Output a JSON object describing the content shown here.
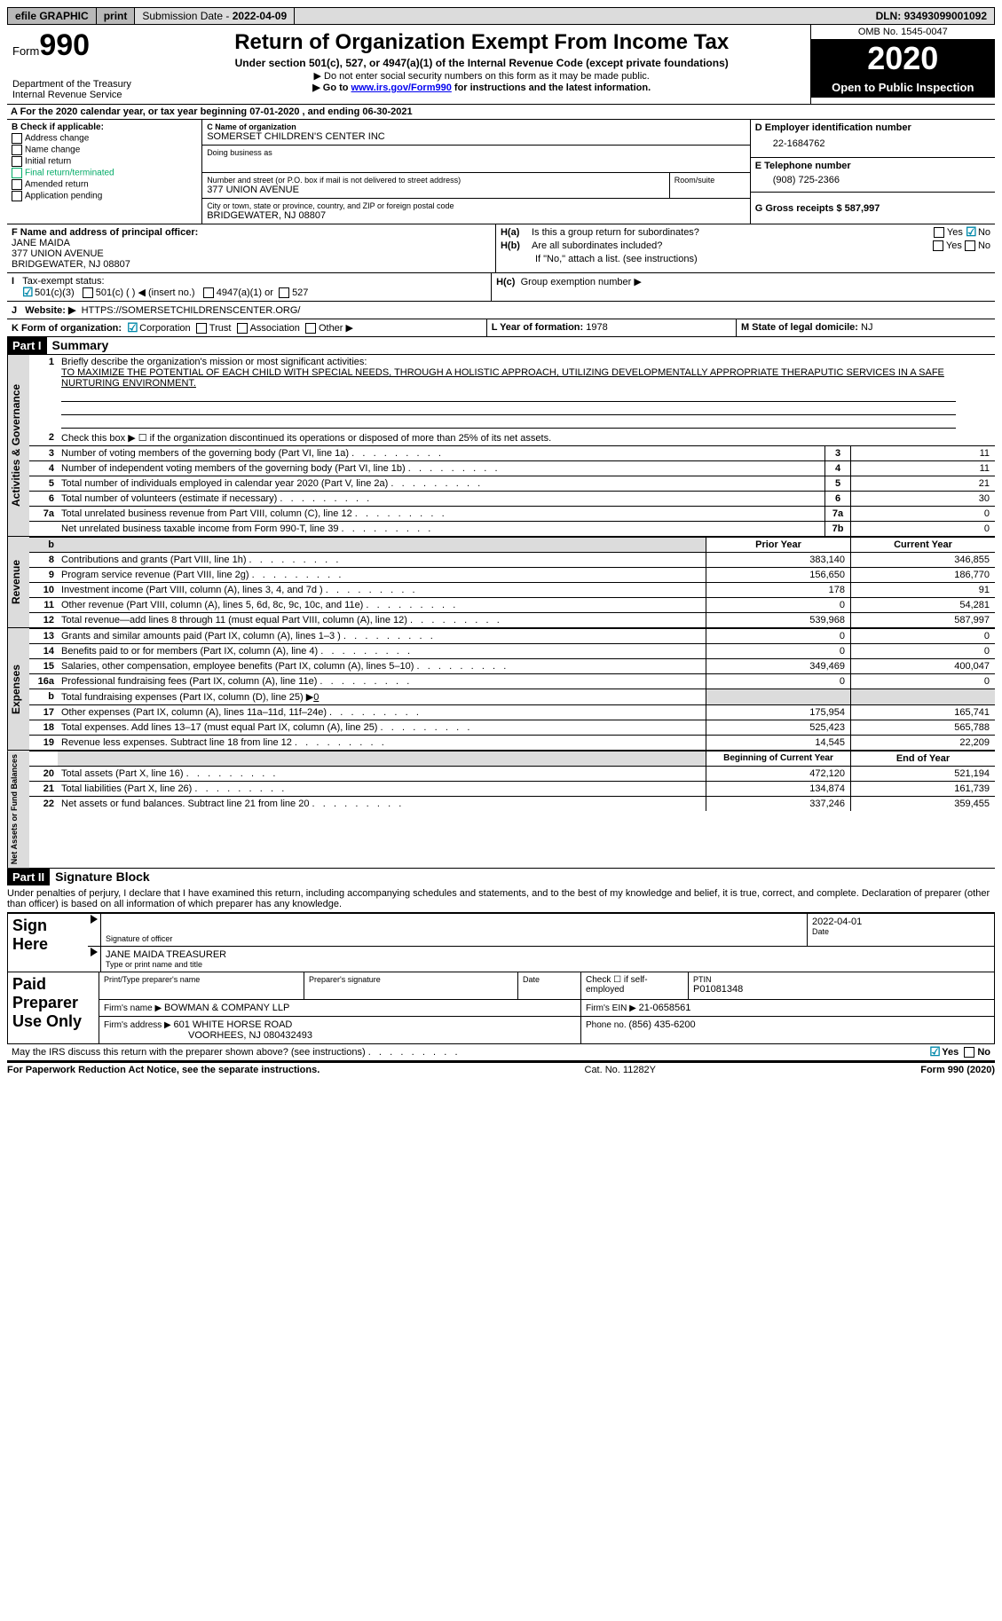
{
  "topbar": {
    "efile": "efile GRAPHIC",
    "print": "print",
    "subdate_label": "Submission Date - ",
    "subdate": "2022-04-09",
    "dln_label": "DLN: ",
    "dln": "93493099001092"
  },
  "header": {
    "form_prefix": "Form",
    "form_no": "990",
    "dept": "Department of the Treasury\nInternal Revenue Service",
    "title": "Return of Organization Exempt From Income Tax",
    "sub1": "Under section 501(c), 527, or 4947(a)(1) of the Internal Revenue Code (except private foundations)",
    "sub2": "▶ Do not enter social security numbers on this form as it may be made public.",
    "sub3_pre": "▶ Go to ",
    "sub3_link": "www.irs.gov/Form990",
    "sub3_post": " for instructions and the latest information.",
    "omb": "OMB No. 1545-0047",
    "year": "2020",
    "open": "Open to Public Inspection"
  },
  "lineA": "A For the 2020 calendar year, or tax year beginning 07-01-2020    , and ending 06-30-2021",
  "B": {
    "label": "B Check if applicable:",
    "items": [
      "Address change",
      "Name change",
      "Initial return",
      "Final return/terminated",
      "Amended return",
      "Application pending"
    ]
  },
  "C": {
    "name_label": "C Name of organization",
    "name": "SOMERSET CHILDREN'S CENTER INC",
    "dba_label": "Doing business as",
    "street_label": "Number and street (or P.O. box if mail is not delivered to street address)",
    "room_label": "Room/suite",
    "street": "377 UNION AVENUE",
    "city_label": "City or town, state or province, country, and ZIP or foreign postal code",
    "city": "BRIDGEWATER, NJ  08807"
  },
  "D": {
    "label": "D Employer identification number",
    "val": "22-1684762"
  },
  "E": {
    "label": "E Telephone number",
    "val": "(908) 725-2366"
  },
  "G": {
    "label": "G Gross receipts $ ",
    "val": "587,997"
  },
  "F": {
    "label": "F  Name and address of principal officer:",
    "name": "JANE MAIDA",
    "street": "377 UNION AVENUE",
    "city": "BRIDGEWATER, NJ  08807"
  },
  "H": {
    "a": "Is this a group return for subordinates?",
    "b": "Are all subordinates included?",
    "note": "If \"No,\" attach a list. (see instructions)",
    "c": "Group exemption number ▶"
  },
  "I": {
    "label": "Tax-exempt status:",
    "opts": [
      "501(c)(3)",
      "501(c) (  ) ◀ (insert no.)",
      "4947(a)(1) or",
      "527"
    ]
  },
  "J": {
    "label": "Website: ▶",
    "val": "HTTPS://SOMERSETCHILDRENSCENTER.ORG/"
  },
  "K": {
    "label": "K Form of organization:",
    "opts": [
      "Corporation",
      "Trust",
      "Association",
      "Other ▶"
    ]
  },
  "L": {
    "label": "L Year of formation: ",
    "val": "1978"
  },
  "M": {
    "label": "M State of legal domicile: ",
    "val": "NJ"
  },
  "part1": {
    "bar": "Part I",
    "title": "Summary"
  },
  "summary": {
    "l1": "Briefly describe the organization's mission or most significant activities:",
    "mission": "TO MAXIMIZE THE POTENTIAL OF EACH CHILD WITH SPECIAL NEEDS, THROUGH A HOLISTIC APPROACH, UTILIZING DEVELOPMENTALLY APPROPRIATE THERAPUTIC SERVICES IN A SAFE NURTURING ENVIRONMENT.",
    "l2": "Check this box ▶ ☐  if the organization discontinued its operations or disposed of more than 25% of its net assets.",
    "rows_gov": [
      {
        "n": "3",
        "t": "Number of voting members of the governing body (Part VI, line 1a)",
        "box": "3",
        "v": "11"
      },
      {
        "n": "4",
        "t": "Number of independent voting members of the governing body (Part VI, line 1b)",
        "box": "4",
        "v": "11"
      },
      {
        "n": "5",
        "t": "Total number of individuals employed in calendar year 2020 (Part V, line 2a)",
        "box": "5",
        "v": "21"
      },
      {
        "n": "6",
        "t": "Total number of volunteers (estimate if necessary)",
        "box": "6",
        "v": "30"
      },
      {
        "n": "7a",
        "t": "Total unrelated business revenue from Part VIII, column (C), line 12",
        "box": "7a",
        "v": "0"
      },
      {
        "n": "",
        "t": "Net unrelated business taxable income from Form 990-T, line 39",
        "box": "7b",
        "v": "0"
      }
    ],
    "colhead_prior": "Prior Year",
    "colhead_curr": "Current Year",
    "rev": [
      {
        "n": "8",
        "t": "Contributions and grants (Part VIII, line 1h)",
        "p": "383,140",
        "c": "346,855"
      },
      {
        "n": "9",
        "t": "Program service revenue (Part VIII, line 2g)",
        "p": "156,650",
        "c": "186,770"
      },
      {
        "n": "10",
        "t": "Investment income (Part VIII, column (A), lines 3, 4, and 7d )",
        "p": "178",
        "c": "91"
      },
      {
        "n": "11",
        "t": "Other revenue (Part VIII, column (A), lines 5, 6d, 8c, 9c, 10c, and 11e)",
        "p": "0",
        "c": "54,281"
      },
      {
        "n": "12",
        "t": "Total revenue—add lines 8 through 11 (must equal Part VIII, column (A), line 12)",
        "p": "539,968",
        "c": "587,997"
      }
    ],
    "exp": [
      {
        "n": "13",
        "t": "Grants and similar amounts paid (Part IX, column (A), lines 1–3 )",
        "p": "0",
        "c": "0"
      },
      {
        "n": "14",
        "t": "Benefits paid to or for members (Part IX, column (A), line 4)",
        "p": "0",
        "c": "0"
      },
      {
        "n": "15",
        "t": "Salaries, other compensation, employee benefits (Part IX, column (A), lines 5–10)",
        "p": "349,469",
        "c": "400,047"
      },
      {
        "n": "16a",
        "t": "Professional fundraising fees (Part IX, column (A), line 11e)",
        "p": "0",
        "c": "0"
      }
    ],
    "exp16b_label": "Total fundraising expenses (Part IX, column (D), line 25) ▶",
    "exp16b_val": "0",
    "exp2": [
      {
        "n": "17",
        "t": "Other expenses (Part IX, column (A), lines 11a–11d, 11f–24e)",
        "p": "175,954",
        "c": "165,741"
      },
      {
        "n": "18",
        "t": "Total expenses. Add lines 13–17 (must equal Part IX, column (A), line 25)",
        "p": "525,423",
        "c": "565,788"
      },
      {
        "n": "19",
        "t": "Revenue less expenses. Subtract line 18 from line 12",
        "p": "14,545",
        "c": "22,209"
      }
    ],
    "colhead_beg": "Beginning of Current Year",
    "colhead_end": "End of Year",
    "net": [
      {
        "n": "20",
        "t": "Total assets (Part X, line 16)",
        "p": "472,120",
        "c": "521,194"
      },
      {
        "n": "21",
        "t": "Total liabilities (Part X, line 26)",
        "p": "134,874",
        "c": "161,739"
      },
      {
        "n": "22",
        "t": "Net assets or fund balances. Subtract line 21 from line 20",
        "p": "337,246",
        "c": "359,455"
      }
    ]
  },
  "part2": {
    "bar": "Part II",
    "title": "Signature Block"
  },
  "declare": "Under penalties of perjury, I declare that I have examined this return, including accompanying schedules and statements, and to the best of my knowledge and belief, it is true, correct, and complete. Declaration of preparer (other than officer) is based on all information of which preparer has any knowledge.",
  "sign": {
    "here": "Sign Here",
    "sig_label": "Signature of officer",
    "date": "2022-04-01",
    "date_label": "Date",
    "name": "JANE MAIDA TREASURER",
    "name_label": "Type or print name and title",
    "paid": "Paid Preparer Use Only",
    "h1": "Print/Type preparer's name",
    "h2": "Preparer's signature",
    "h3": "Date",
    "h4": "Check ☐ if self-employed",
    "h5_label": "PTIN",
    "h5": "P01081348",
    "firm_label": "Firm's name   ▶ ",
    "firm": "BOWMAN & COMPANY LLP",
    "ein_label": "Firm's EIN ▶ ",
    "ein": "21-0658561",
    "addr_label": "Firm's address ▶ ",
    "addr1": "601 WHITE HORSE ROAD",
    "addr2": "VOORHEES, NJ  080432493",
    "phone_label": "Phone no. ",
    "phone": "(856) 435-6200"
  },
  "discuss": "May the IRS discuss this return with the preparer shown above? (see instructions)",
  "yes": "Yes",
  "no": "No",
  "footer": {
    "l": "For Paperwork Reduction Act Notice, see the separate instructions.",
    "m": "Cat. No. 11282Y",
    "r": "Form 990 (2020)"
  },
  "sidelabels": {
    "gov": "Activities & Governance",
    "rev": "Revenue",
    "exp": "Expenses",
    "net": "Net Assets or Fund Balances"
  }
}
